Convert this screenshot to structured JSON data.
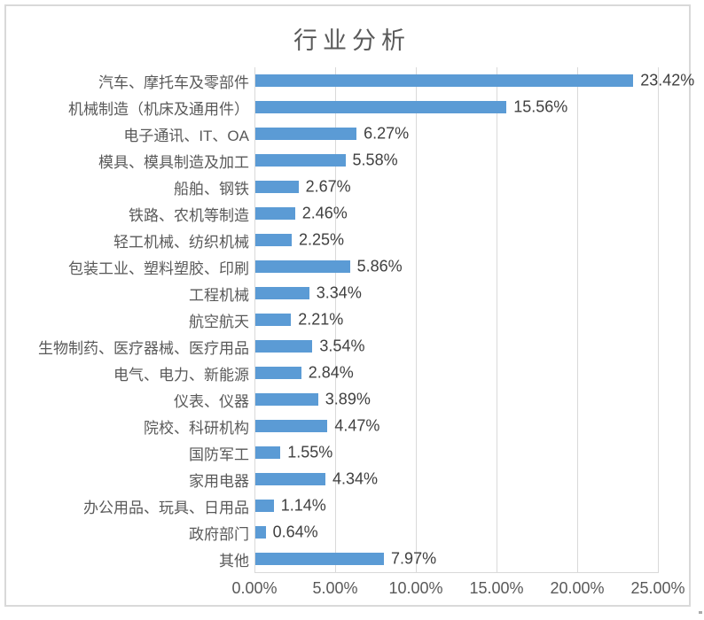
{
  "title": "行业分析",
  "chart_data": {
    "type": "bar",
    "orientation": "horizontal",
    "title": "行业分析",
    "categories": [
      "汽车、摩托车及零部件",
      "机械制造（机床及通用件）",
      "电子通讯、IT、OA",
      "模具、模具制造及加工",
      "船舶、钢铁",
      "铁路、农机等制造",
      "轻工机械、纺织机械",
      "包装工业、塑料塑胶、印刷",
      "工程机械",
      "航空航天",
      "生物制药、医疗器械、医疗用品",
      "电气、电力、新能源",
      "仪表、仪器",
      "院校、科研机构",
      "国防军工",
      "家用电器",
      "办公用品、玩具、日用品",
      "政府部门",
      "其他"
    ],
    "values": [
      23.42,
      15.56,
      6.27,
      5.58,
      2.67,
      2.46,
      2.25,
      5.86,
      3.34,
      2.21,
      3.54,
      2.84,
      3.89,
      4.47,
      1.55,
      4.34,
      1.14,
      0.64,
      7.97
    ],
    "data_labels": [
      "23.42%",
      "15.56%",
      "6.27%",
      "5.58%",
      "2.67%",
      "2.46%",
      "2.25%",
      "5.86%",
      "3.34%",
      "2.21%",
      "3.54%",
      "2.84%",
      "3.89%",
      "4.47%",
      "1.55%",
      "4.34%",
      "1.14%",
      "0.64%",
      "7.97%"
    ],
    "x_ticks": [
      "0.00%",
      "5.00%",
      "10.00%",
      "15.00%",
      "20.00%",
      "25.00%"
    ],
    "xlim": [
      0,
      25
    ],
    "grid": true,
    "legend": "none",
    "bar_color": "#5b9bd5",
    "gridline_color": "#d9d9d9",
    "text_color": "#595959",
    "data_label_color": "#404040"
  }
}
